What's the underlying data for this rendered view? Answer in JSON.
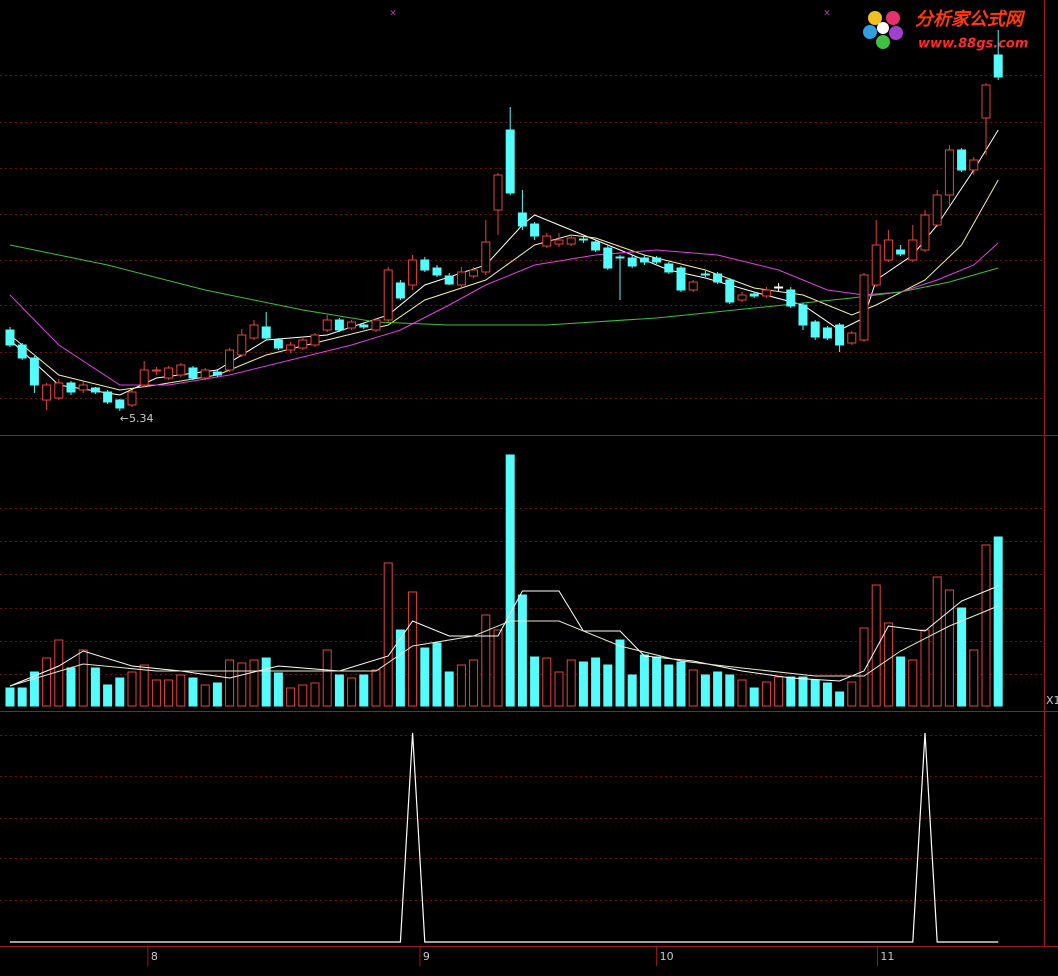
{
  "chart_data": [
    {
      "type": "candlestick",
      "up_color": "#e8423c",
      "down_color": "#54fcfc",
      "doji_color": "#ffffff",
      "ylim": [
        5.1,
        9.15
      ],
      "annotation": "←5.34",
      "open": [
        6.15,
        6.0,
        5.87,
        5.45,
        5.47,
        5.62,
        5.55,
        5.57,
        5.53,
        5.45,
        5.4,
        5.6,
        5.74,
        5.67,
        5.7,
        5.77,
        5.67,
        5.73,
        5.75,
        5.9,
        6.07,
        6.18,
        6.05,
        5.95,
        5.97,
        6.0,
        6.15,
        6.25,
        6.17,
        6.2,
        6.15,
        6.25,
        6.62,
        6.6,
        6.85,
        6.77,
        6.69,
        6.6,
        6.69,
        6.73,
        7.35,
        8.15,
        7.32,
        7.21,
        6.99,
        7.01,
        7.01,
        7.06,
        7.03,
        6.97,
        6.88,
        6.87,
        6.87,
        6.87,
        6.81,
        6.77,
        6.55,
        6.71,
        6.71,
        6.65,
        6.45,
        6.51,
        6.49,
        6.58,
        6.55,
        6.4,
        6.23,
        6.17,
        6.2,
        6.02,
        6.05,
        6.6,
        6.85,
        6.95,
        6.85,
        6.95,
        7.2,
        7.5,
        7.95,
        7.75,
        8.27,
        8.9
      ],
      "high": [
        6.18,
        6.02,
        5.89,
        5.62,
        5.66,
        5.64,
        5.63,
        5.58,
        5.55,
        5.46,
        5.55,
        5.84,
        5.78,
        5.79,
        5.82,
        5.79,
        5.77,
        5.76,
        5.97,
        6.16,
        6.25,
        6.33,
        6.07,
        6.03,
        6.08,
        6.12,
        6.3,
        6.27,
        6.25,
        6.22,
        6.27,
        6.78,
        6.65,
        6.9,
        6.88,
        6.8,
        6.72,
        6.78,
        6.78,
        7.25,
        7.72,
        8.38,
        7.55,
        7.23,
        7.12,
        7.12,
        7.1,
        7.08,
        7.05,
        7.0,
        6.9,
        6.9,
        6.9,
        6.89,
        6.83,
        6.79,
        6.65,
        6.74,
        6.73,
        6.67,
        6.53,
        6.53,
        6.58,
        6.62,
        6.58,
        6.42,
        6.25,
        6.19,
        6.22,
        6.14,
        6.72,
        7.25,
        7.15,
        7.0,
        7.2,
        7.35,
        7.55,
        8.0,
        7.97,
        7.88,
        8.62,
        9.15
      ],
      "low": [
        5.98,
        5.85,
        5.52,
        5.35,
        5.45,
        5.5,
        5.52,
        5.51,
        5.41,
        5.34,
        5.38,
        5.58,
        5.7,
        5.65,
        5.68,
        5.65,
        5.65,
        5.68,
        5.73,
        5.88,
        6.05,
        6.05,
        5.95,
        5.92,
        5.95,
        5.98,
        6.13,
        6.13,
        6.15,
        6.16,
        6.13,
        6.23,
        6.45,
        6.55,
        6.73,
        6.68,
        6.6,
        6.58,
        6.67,
        6.7,
        7.1,
        7.5,
        7.15,
        7.05,
        6.97,
        6.98,
        6.99,
        7.02,
        6.93,
        6.75,
        6.45,
        6.77,
        6.8,
        6.81,
        6.71,
        6.53,
        6.53,
        6.68,
        6.61,
        6.41,
        6.43,
        6.47,
        6.47,
        6.54,
        6.37,
        6.15,
        6.05,
        6.05,
        5.93,
        6.0,
        6.03,
        6.58,
        6.83,
        6.89,
        6.83,
        6.93,
        7.18,
        7.4,
        7.73,
        7.7,
        7.9,
        8.65
      ],
      "close": [
        6.0,
        5.87,
        5.6,
        5.6,
        5.62,
        5.53,
        5.6,
        5.53,
        5.43,
        5.37,
        5.53,
        5.75,
        5.75,
        5.77,
        5.8,
        5.67,
        5.75,
        5.7,
        5.95,
        6.1,
        6.2,
        6.07,
        5.97,
        6.0,
        6.05,
        6.1,
        6.25,
        6.15,
        6.23,
        6.18,
        6.25,
        6.75,
        6.47,
        6.85,
        6.75,
        6.7,
        6.61,
        6.73,
        6.75,
        7.03,
        7.7,
        7.52,
        7.19,
        7.09,
        7.09,
        7.05,
        7.07,
        7.05,
        6.95,
        6.77,
        6.87,
        6.79,
        6.83,
        6.83,
        6.73,
        6.55,
        6.63,
        6.7,
        6.63,
        6.43,
        6.5,
        6.49,
        6.55,
        6.58,
        6.39,
        6.2,
        6.08,
        6.07,
        6.0,
        6.12,
        6.7,
        7.0,
        7.05,
        6.91,
        7.05,
        7.3,
        7.5,
        7.95,
        7.75,
        7.85,
        8.6,
        8.68
      ],
      "lines": [
        {
          "color": "#ffffff",
          "x": [
            0,
            4,
            9,
            12,
            17,
            21,
            26,
            31,
            34,
            39,
            42,
            43,
            45,
            48,
            51,
            54,
            57,
            61,
            65,
            68,
            70,
            71,
            74,
            76,
            79,
            81
          ],
          "values": [
            6.05,
            5.6,
            5.5,
            5.67,
            5.75,
            6.05,
            6.1,
            6.3,
            6.6,
            6.8,
            7.2,
            7.3,
            7.2,
            7.05,
            6.9,
            6.75,
            6.67,
            6.53,
            6.4,
            6.15,
            6.27,
            6.65,
            6.9,
            7.2,
            7.75,
            8.15
          ]
        },
        {
          "color": "#f4f0a8",
          "x": [
            0,
            4,
            9,
            12,
            17,
            21,
            26,
            31,
            34,
            39,
            43,
            46,
            48,
            52,
            57,
            61,
            65,
            69,
            71,
            75,
            78,
            81
          ],
          "values": [
            6.1,
            5.7,
            5.55,
            5.6,
            5.7,
            5.9,
            6.05,
            6.2,
            6.45,
            6.65,
            7.0,
            7.1,
            7.07,
            6.9,
            6.75,
            6.57,
            6.5,
            6.3,
            6.4,
            6.65,
            7.0,
            7.65
          ]
        },
        {
          "color": "#e040e0",
          "x": [
            0,
            4,
            9,
            13,
            18,
            23,
            28,
            32,
            36,
            39,
            43,
            48,
            53,
            58,
            63,
            67,
            70,
            73,
            76,
            79,
            81
          ],
          "values": [
            6.5,
            6.0,
            5.6,
            5.6,
            5.7,
            5.85,
            6.0,
            6.15,
            6.4,
            6.6,
            6.8,
            6.9,
            6.95,
            6.9,
            6.75,
            6.55,
            6.5,
            6.53,
            6.65,
            6.8,
            7.02
          ]
        },
        {
          "color": "#3cc03c",
          "x": [
            0,
            8,
            16,
            24,
            30,
            36,
            44,
            53,
            61,
            69,
            73,
            77,
            81
          ],
          "values": [
            7.0,
            6.8,
            6.55,
            6.35,
            6.23,
            6.2,
            6.2,
            6.27,
            6.37,
            6.47,
            6.53,
            6.63,
            6.77
          ]
        }
      ]
    },
    {
      "type": "bar",
      "ylim": [
        0,
        255
      ],
      "label": "X1",
      "values": [
        18,
        18,
        34,
        48,
        66,
        38,
        56,
        38,
        21,
        28,
        34,
        41,
        26,
        26,
        31,
        28,
        21,
        23,
        46,
        43,
        46,
        48,
        33,
        18,
        21,
        23,
        56,
        31,
        28,
        31,
        36,
        143,
        76,
        114,
        58,
        63,
        34,
        41,
        46,
        91,
        76,
        251,
        111,
        49,
        48,
        34,
        46,
        44,
        48,
        41,
        66,
        31,
        51,
        49,
        41,
        44,
        36,
        31,
        34,
        31,
        26,
        18,
        24,
        29,
        29,
        29,
        26,
        23,
        14,
        24,
        78,
        121,
        83,
        49,
        46,
        76,
        129,
        116,
        98,
        56,
        161,
        169
      ],
      "lines": [
        {
          "color": "#ffffff",
          "x": [
            0,
            4,
            6,
            10,
            14,
            18,
            22,
            27,
            31,
            33,
            36,
            40,
            42,
            45,
            47,
            50,
            52,
            56,
            60,
            64,
            68,
            70,
            72,
            75,
            78,
            81
          ],
          "values": [
            20,
            40,
            55,
            40,
            35,
            28,
            40,
            35,
            50,
            85,
            70,
            70,
            115,
            115,
            75,
            75,
            50,
            45,
            35,
            28,
            25,
            35,
            80,
            75,
            105,
            120
          ]
        },
        {
          "color": "#e8e8c8",
          "x": [
            0,
            6,
            12,
            18,
            24,
            30,
            33,
            38,
            41,
            45,
            50,
            55,
            60,
            66,
            70,
            73,
            77,
            81
          ],
          "values": [
            20,
            42,
            35,
            35,
            35,
            35,
            60,
            70,
            85,
            85,
            60,
            45,
            38,
            30,
            30,
            55,
            80,
            100
          ]
        }
      ]
    },
    {
      "type": "line",
      "ylim": [
        0,
        1.1
      ],
      "color": "#ffffff",
      "values": [
        0,
        0,
        0,
        0,
        0,
        0,
        0,
        0,
        0,
        0,
        0,
        0,
        0,
        0,
        0,
        0,
        0,
        0,
        0,
        0,
        0,
        0,
        0,
        0,
        0,
        0,
        0,
        0,
        0,
        0,
        0,
        0,
        0,
        1,
        0,
        0,
        0,
        0,
        0,
        0,
        0,
        0,
        0,
        0,
        0,
        0,
        0,
        0,
        0,
        0,
        0,
        0,
        0,
        0,
        0,
        0,
        0,
        0,
        0,
        0,
        0,
        0,
        0,
        0,
        0,
        0,
        0,
        0,
        0,
        0,
        0,
        0,
        0,
        0,
        0,
        1,
        0,
        0,
        0,
        0,
        0,
        0
      ],
      "xticks": [
        {
          "value": 11.3,
          "label": "8"
        },
        {
          "value": 33.6,
          "label": "9"
        },
        {
          "value": 53,
          "label": "10"
        },
        {
          "value": 71.1,
          "label": "11"
        }
      ]
    }
  ],
  "logo": {
    "title": "分析家公式网",
    "url": "www.88gs.com"
  }
}
